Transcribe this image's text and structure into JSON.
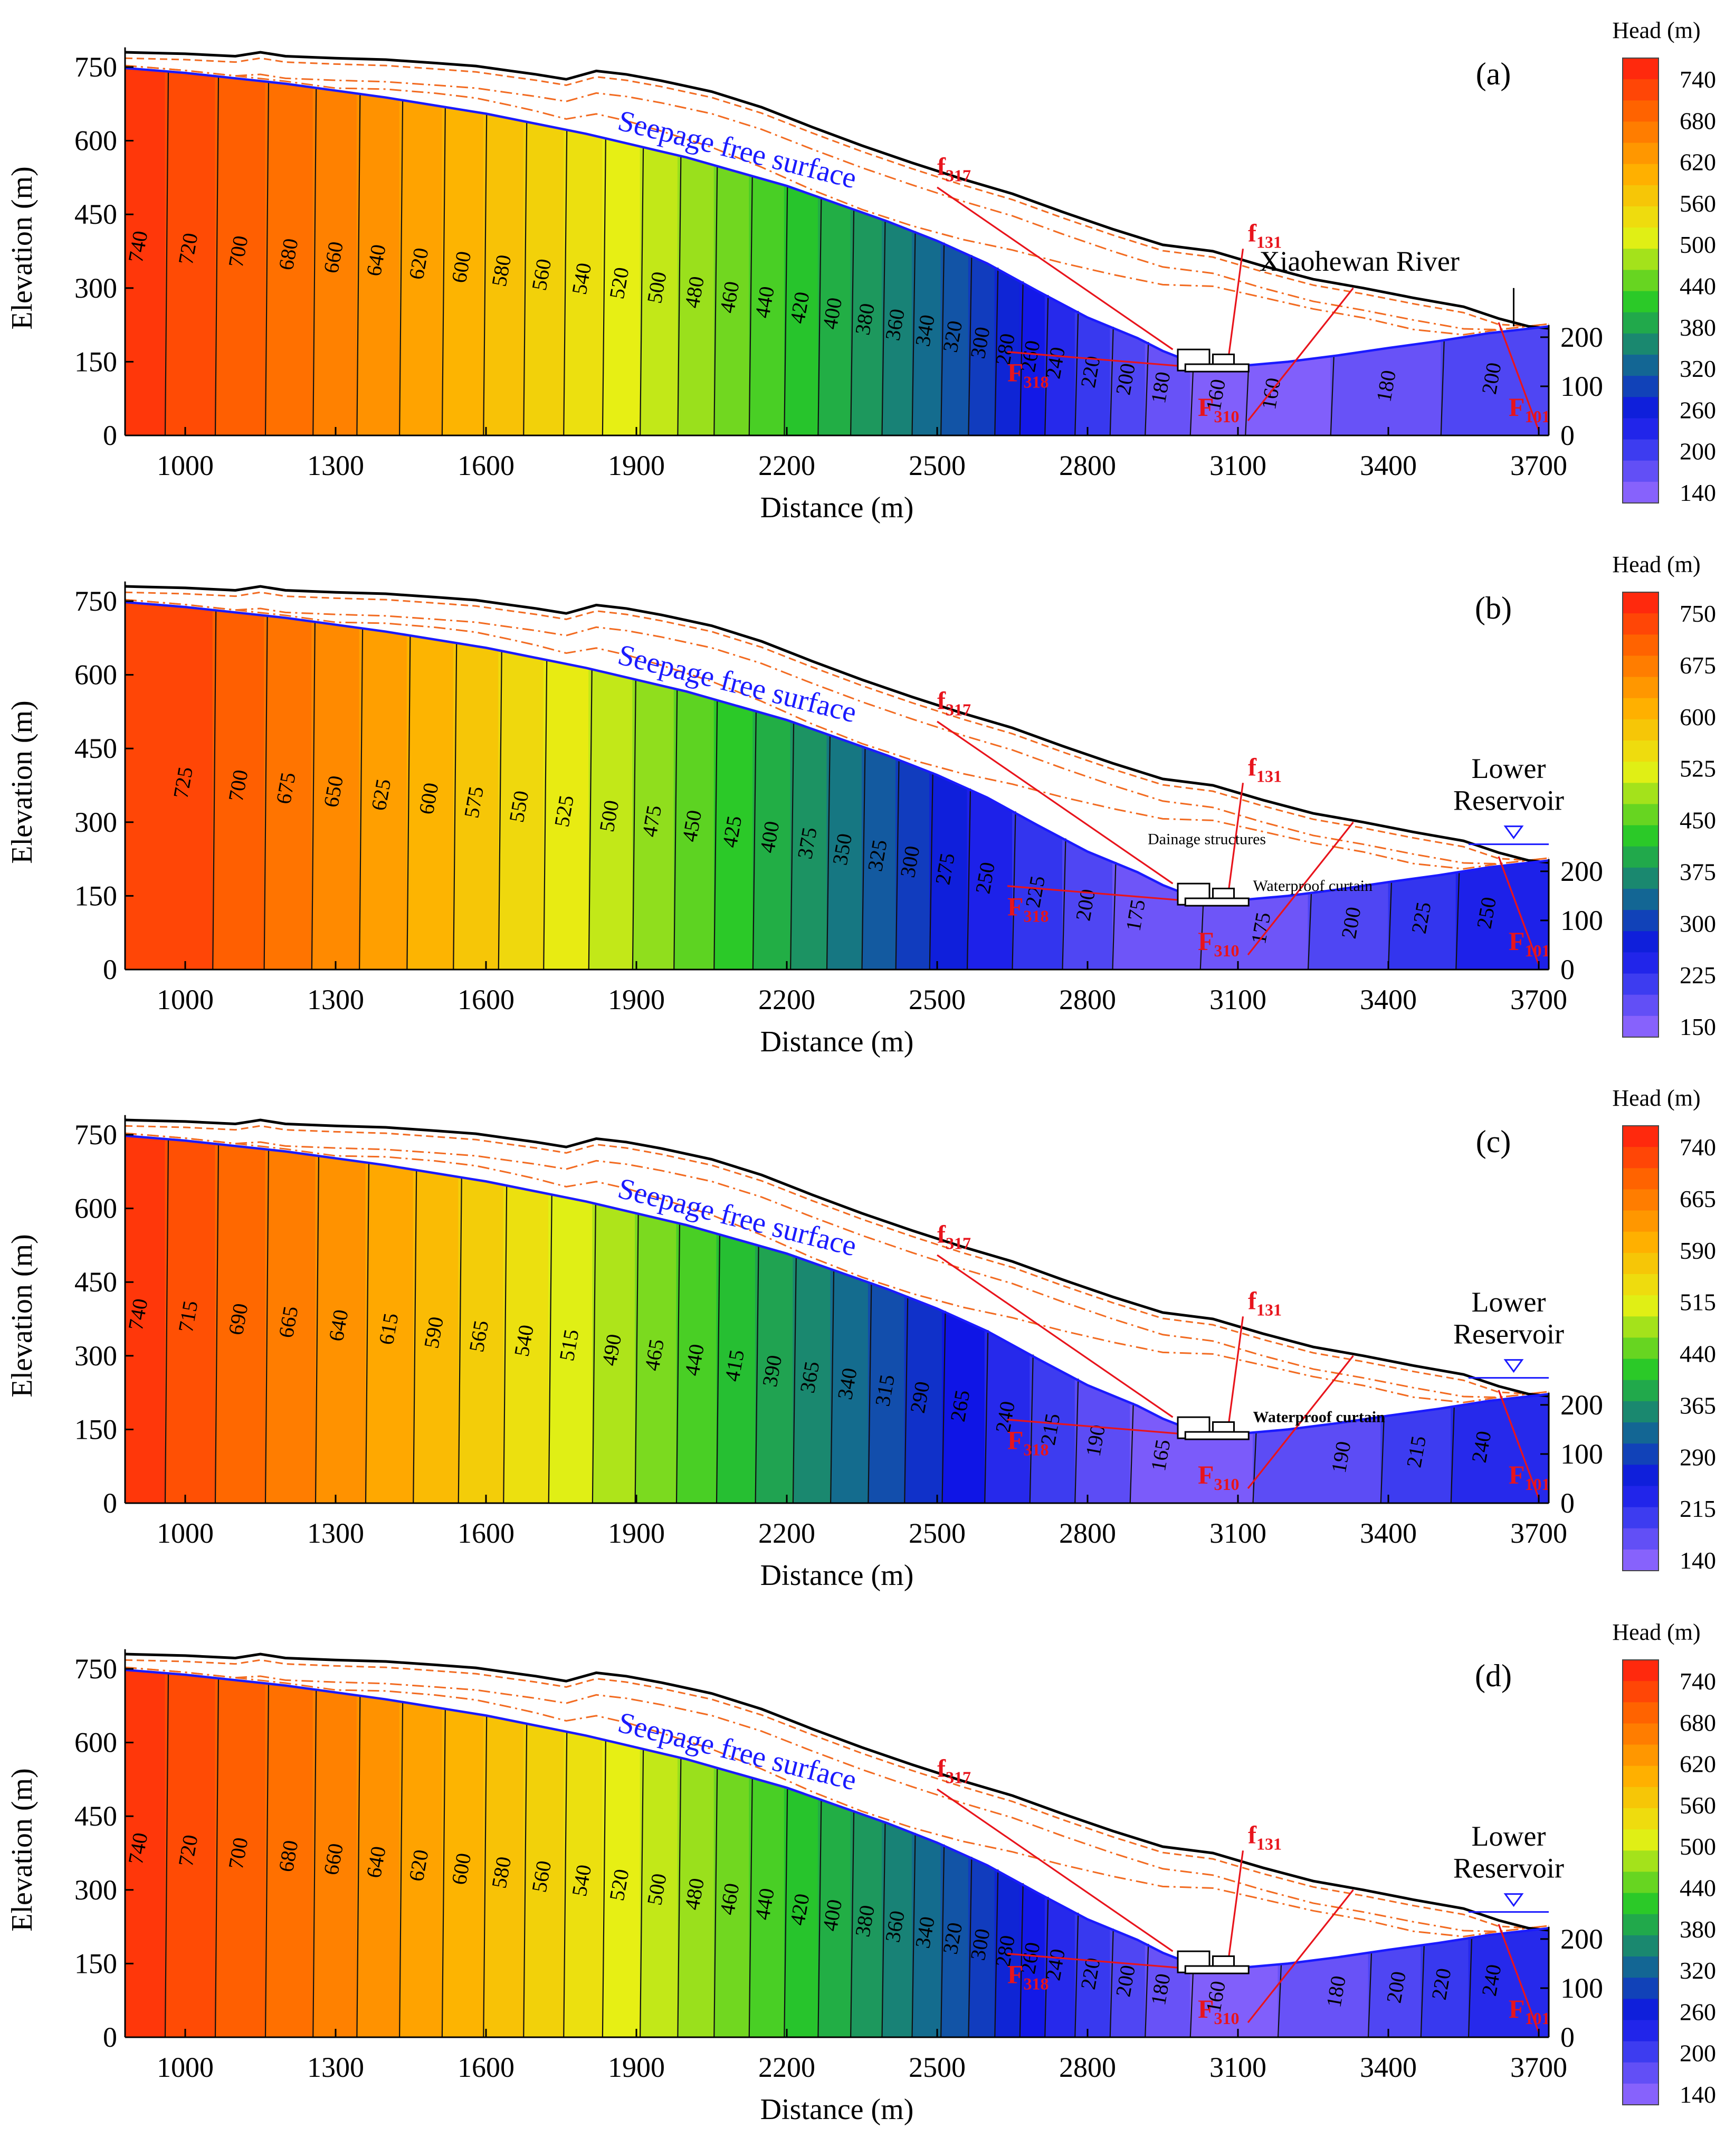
{
  "figure": {
    "shared": {
      "x_label": "Distance (m)",
      "y_label": "Elevation (m)",
      "free_surface_label": "Seepage free surface",
      "colorbar_title": "Head (m)",
      "x_ticks": [
        1000,
        1300,
        1600,
        1900,
        2200,
        2500,
        2800,
        3100,
        3400,
        3700
      ],
      "y_ticks": [
        0,
        150,
        300,
        450,
        600,
        750
      ],
      "right_ticks": [
        0,
        100,
        200
      ],
      "x_range": [
        880,
        3720
      ],
      "y_range": [
        0,
        790
      ],
      "fault_labels": [
        {
          "letter": "f",
          "sub": "317"
        },
        {
          "letter": "f",
          "sub": "131"
        },
        {
          "letter": "F",
          "sub": "318"
        },
        {
          "letter": "F",
          "sub": "310"
        },
        {
          "letter": "F",
          "sub": "101"
        }
      ],
      "colors": {
        "free_surface": "#1a1aff",
        "fault": "#e8141c",
        "strata": "#f26b21",
        "terrain": "#000000",
        "head_min_color": "#9a6bff",
        "head_max_color": "#ff1a10"
      }
    },
    "chart_data": [
      {
        "type": "heatmap",
        "panel_label": "(a)",
        "head_range": [
          140,
          770
        ],
        "colorbar_ticks": [
          740,
          680,
          620,
          560,
          500,
          440,
          380,
          320,
          260,
          200,
          140
        ],
        "contour_labels": [
          {
            "value": 740,
            "x": 910
          },
          {
            "value": 720,
            "x": 1010
          },
          {
            "value": 700,
            "x": 1110
          },
          {
            "value": 680,
            "x": 1210
          },
          {
            "value": 660,
            "x": 1300
          },
          {
            "value": 640,
            "x": 1385
          },
          {
            "value": 620,
            "x": 1470
          },
          {
            "value": 600,
            "x": 1555
          },
          {
            "value": 580,
            "x": 1635
          },
          {
            "value": 560,
            "x": 1715
          },
          {
            "value": 540,
            "x": 1795
          },
          {
            "value": 520,
            "x": 1870
          },
          {
            "value": 500,
            "x": 1945
          },
          {
            "value": 480,
            "x": 2020
          },
          {
            "value": 460,
            "x": 2090
          },
          {
            "value": 440,
            "x": 2160
          },
          {
            "value": 420,
            "x": 2230
          },
          {
            "value": 400,
            "x": 2295
          },
          {
            "value": 380,
            "x": 2360
          },
          {
            "value": 360,
            "x": 2420
          },
          {
            "value": 340,
            "x": 2480
          },
          {
            "value": 320,
            "x": 2535
          },
          {
            "value": 300,
            "x": 2590
          },
          {
            "value": 280,
            "x": 2640
          },
          {
            "value": 260,
            "x": 2690
          },
          {
            "value": 240,
            "x": 2740
          },
          {
            "value": 220,
            "x": 2810
          },
          {
            "value": 200,
            "x": 2880
          },
          {
            "value": 180,
            "x": 2950
          },
          {
            "value": 160,
            "x": 3060
          },
          {
            "value": 160,
            "x": 3170
          },
          {
            "value": 180,
            "x": 3400
          },
          {
            "value": 200,
            "x": 3610
          }
        ],
        "annotations": [
          {
            "text": "Xiaohewan River",
            "x": 3490,
            "y": 335
          }
        ],
        "reservoir": null,
        "structure_labels": []
      },
      {
        "type": "heatmap",
        "panel_label": "(b)",
        "head_range": [
          140,
          770
        ],
        "colorbar_ticks": [
          750,
          675,
          600,
          525,
          450,
          375,
          300,
          225,
          150
        ],
        "contour_labels": [
          {
            "value": 725,
            "x": 1000
          },
          {
            "value": 700,
            "x": 1110
          },
          {
            "value": 675,
            "x": 1205
          },
          {
            "value": 650,
            "x": 1300
          },
          {
            "value": 625,
            "x": 1395
          },
          {
            "value": 600,
            "x": 1490
          },
          {
            "value": 575,
            "x": 1580
          },
          {
            "value": 550,
            "x": 1670
          },
          {
            "value": 525,
            "x": 1760
          },
          {
            "value": 500,
            "x": 1850
          },
          {
            "value": 475,
            "x": 1935
          },
          {
            "value": 450,
            "x": 2015
          },
          {
            "value": 425,
            "x": 2095
          },
          {
            "value": 400,
            "x": 2170
          },
          {
            "value": 375,
            "x": 2245
          },
          {
            "value": 350,
            "x": 2315
          },
          {
            "value": 325,
            "x": 2385
          },
          {
            "value": 300,
            "x": 2450
          },
          {
            "value": 275,
            "x": 2520
          },
          {
            "value": 250,
            "x": 2600
          },
          {
            "value": 225,
            "x": 2700
          },
          {
            "value": 200,
            "x": 2800
          },
          {
            "value": 175,
            "x": 2900
          },
          {
            "value": 175,
            "x": 3150
          },
          {
            "value": 200,
            "x": 3330
          },
          {
            "value": 225,
            "x": 3470
          },
          {
            "value": 250,
            "x": 3600
          }
        ],
        "annotations": [],
        "reservoir": {
          "line1": "Lower",
          "line2": "Reservoir"
        },
        "structure_labels": [
          {
            "text": "Dainage structures",
            "x": 2920,
            "y": 255
          },
          {
            "text": "Waterproof curtain",
            "x": 3130,
            "y": 160
          }
        ]
      },
      {
        "type": "heatmap",
        "panel_label": "(c)",
        "head_range": [
          140,
          770
        ],
        "colorbar_ticks": [
          740,
          665,
          590,
          515,
          440,
          365,
          290,
          215,
          140
        ],
        "contour_labels": [
          {
            "value": 740,
            "x": 910
          },
          {
            "value": 715,
            "x": 1010
          },
          {
            "value": 690,
            "x": 1110
          },
          {
            "value": 665,
            "x": 1210
          },
          {
            "value": 640,
            "x": 1310
          },
          {
            "value": 615,
            "x": 1410
          },
          {
            "value": 590,
            "x": 1500
          },
          {
            "value": 565,
            "x": 1590
          },
          {
            "value": 540,
            "x": 1680
          },
          {
            "value": 515,
            "x": 1770
          },
          {
            "value": 490,
            "x": 1855
          },
          {
            "value": 465,
            "x": 1940
          },
          {
            "value": 440,
            "x": 2020
          },
          {
            "value": 415,
            "x": 2100
          },
          {
            "value": 390,
            "x": 2175
          },
          {
            "value": 365,
            "x": 2250
          },
          {
            "value": 340,
            "x": 2325
          },
          {
            "value": 315,
            "x": 2400
          },
          {
            "value": 290,
            "x": 2470
          },
          {
            "value": 265,
            "x": 2550
          },
          {
            "value": 240,
            "x": 2640
          },
          {
            "value": 215,
            "x": 2730
          },
          {
            "value": 190,
            "x": 2820
          },
          {
            "value": 165,
            "x": 2950
          },
          {
            "value": 190,
            "x": 3310
          },
          {
            "value": 215,
            "x": 3460
          },
          {
            "value": 240,
            "x": 3590
          }
        ],
        "annotations": [],
        "reservoir": {
          "line1": "Lower",
          "line2": "Reservoir"
        },
        "structure_labels": [
          {
            "text": "Waterproof curtain",
            "x": 3130,
            "y": 165
          }
        ]
      },
      {
        "type": "heatmap",
        "panel_label": "(d)",
        "head_range": [
          140,
          770
        ],
        "colorbar_ticks": [
          740,
          680,
          620,
          560,
          500,
          440,
          380,
          320,
          260,
          200,
          140
        ],
        "contour_labels": [
          {
            "value": 740,
            "x": 910
          },
          {
            "value": 720,
            "x": 1010
          },
          {
            "value": 700,
            "x": 1110
          },
          {
            "value": 680,
            "x": 1210
          },
          {
            "value": 660,
            "x": 1300
          },
          {
            "value": 640,
            "x": 1385
          },
          {
            "value": 620,
            "x": 1470
          },
          {
            "value": 600,
            "x": 1555
          },
          {
            "value": 580,
            "x": 1635
          },
          {
            "value": 560,
            "x": 1715
          },
          {
            "value": 540,
            "x": 1795
          },
          {
            "value": 520,
            "x": 1870
          },
          {
            "value": 500,
            "x": 1945
          },
          {
            "value": 480,
            "x": 2020
          },
          {
            "value": 460,
            "x": 2090
          },
          {
            "value": 440,
            "x": 2160
          },
          {
            "value": 420,
            "x": 2230
          },
          {
            "value": 400,
            "x": 2295
          },
          {
            "value": 380,
            "x": 2360
          },
          {
            "value": 360,
            "x": 2420
          },
          {
            "value": 340,
            "x": 2480
          },
          {
            "value": 320,
            "x": 2535
          },
          {
            "value": 300,
            "x": 2590
          },
          {
            "value": 280,
            "x": 2640
          },
          {
            "value": 260,
            "x": 2690
          },
          {
            "value": 240,
            "x": 2740
          },
          {
            "value": 220,
            "x": 2810
          },
          {
            "value": 200,
            "x": 2880
          },
          {
            "value": 180,
            "x": 2950
          },
          {
            "value": 160,
            "x": 3060
          },
          {
            "value": 180,
            "x": 3300
          },
          {
            "value": 200,
            "x": 3420
          },
          {
            "value": 220,
            "x": 3510
          },
          {
            "value": 240,
            "x": 3610
          }
        ],
        "annotations": [],
        "reservoir": {
          "line1": "Lower",
          "line2": "Reservoir"
        },
        "structure_labels": []
      }
    ]
  }
}
